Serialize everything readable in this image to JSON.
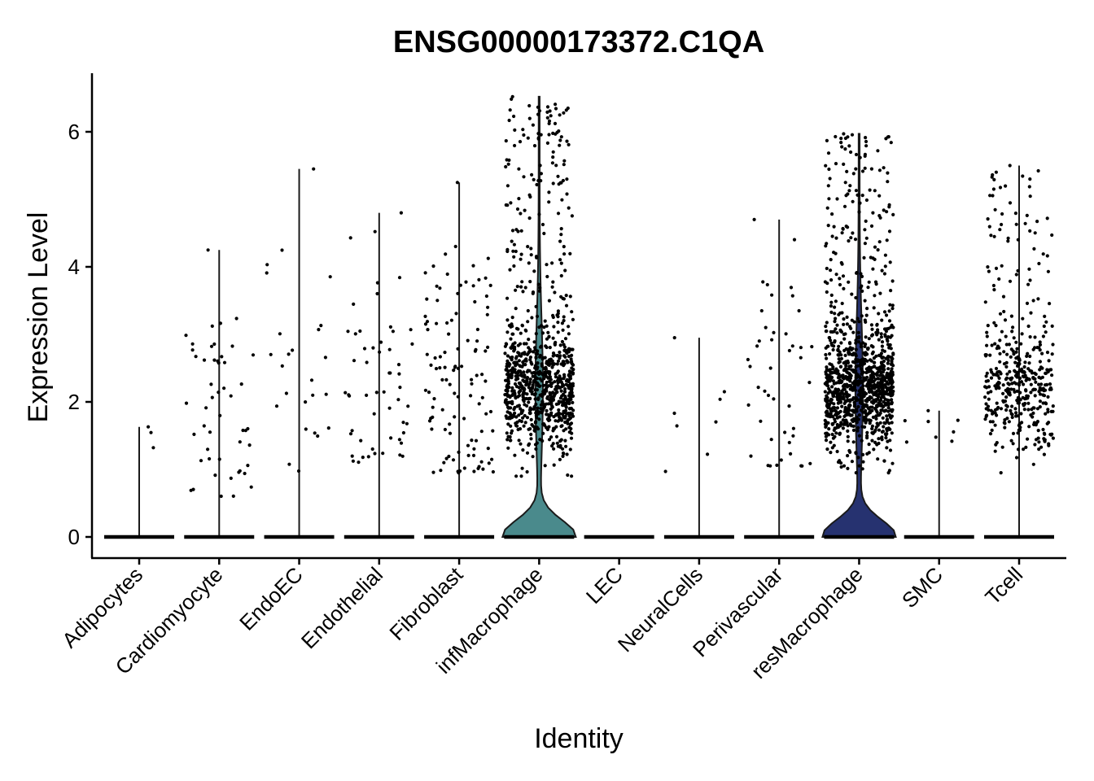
{
  "chart_data": {
    "type": "violin",
    "title": "ENSG00000173372.C1QA",
    "xlabel": "Identity",
    "ylabel": "Expression Level",
    "ylim": [
      -0.35,
      6.85
    ],
    "yticks": [
      0,
      2,
      4,
      6
    ],
    "grid": false,
    "legend": "none",
    "categories": [
      "Adipocytes",
      "Cardiomyocyte",
      "EndoEC",
      "Endothelial",
      "Fibroblast",
      "infMacrophage",
      "LEC",
      "NeuralCells",
      "Perivascular",
      "resMacrophage",
      "SMC",
      "Tcell"
    ],
    "series": [
      {
        "category": "Adipocytes",
        "max": 1.63,
        "nonzero_points": 3,
        "nonzero_range": [
          1.3,
          1.63
        ],
        "fill": "none"
      },
      {
        "category": "Cardiomyocyte",
        "max": 4.25,
        "nonzero_points": 50,
        "nonzero_range": [
          0.6,
          4.25
        ],
        "fill": "none"
      },
      {
        "category": "EndoEC",
        "max": 5.45,
        "nonzero_points": 25,
        "nonzero_range": [
          0.95,
          5.45
        ],
        "fill": "none"
      },
      {
        "category": "Endothelial",
        "max": 4.8,
        "nonzero_points": 55,
        "nonzero_range": [
          1.1,
          4.8
        ],
        "fill": "none"
      },
      {
        "category": "Fibroblast",
        "max": 5.25,
        "nonzero_points": 110,
        "nonzero_range": [
          0.95,
          5.25
        ],
        "fill": "none"
      },
      {
        "category": "infMacrophage",
        "max": 6.52,
        "nonzero_points": 900,
        "nonzero_range": [
          0.9,
          6.52
        ],
        "fill": "#4a8a8c"
      },
      {
        "category": "LEC",
        "max": 0,
        "nonzero_points": 0,
        "nonzero_range": [
          0,
          0
        ],
        "fill": "none"
      },
      {
        "category": "NeuralCells",
        "max": 2.95,
        "nonzero_points": 8,
        "nonzero_range": [
          0.8,
          2.95
        ],
        "fill": "none"
      },
      {
        "category": "Perivascular",
        "max": 4.7,
        "nonzero_points": 45,
        "nonzero_range": [
          1.05,
          4.7
        ],
        "fill": "none"
      },
      {
        "category": "resMacrophage",
        "max": 5.97,
        "nonzero_points": 1100,
        "nonzero_range": [
          0.95,
          5.97
        ],
        "fill": "#263270"
      },
      {
        "category": "SMC",
        "max": 1.87,
        "nonzero_points": 8,
        "nonzero_range": [
          1.4,
          1.87
        ],
        "fill": "none"
      },
      {
        "category": "Tcell",
        "max": 5.5,
        "nonzero_points": 420,
        "nonzero_range": [
          0.95,
          5.5
        ],
        "fill": "none"
      }
    ]
  }
}
